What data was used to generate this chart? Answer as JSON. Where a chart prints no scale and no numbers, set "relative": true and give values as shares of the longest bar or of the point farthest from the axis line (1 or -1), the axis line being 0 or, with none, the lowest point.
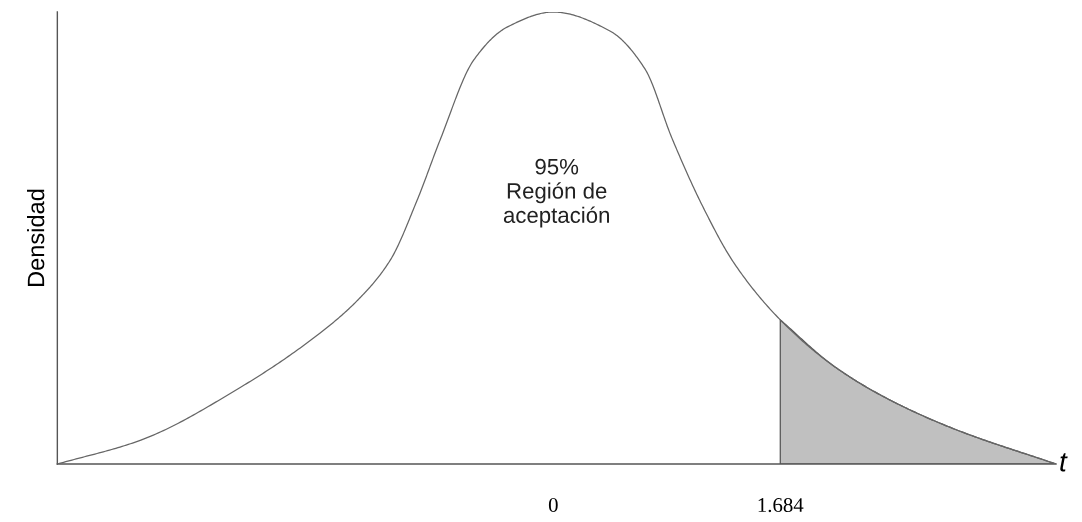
{
  "chart_data": {
    "type": "line",
    "relative": true,
    "xlabel": "t",
    "ylabel": "Densidad",
    "annotations": [
      "95%\nRegión de\naceptación"
    ],
    "xlim": [
      -3.68,
      3.73
    ],
    "xticks": [
      0,
      1.684
    ],
    "grid": false,
    "marker": "none",
    "line_style": "solid",
    "series": [
      {
        "color": "#666666",
        "x": [
          -3.68,
          -3.06,
          -2.32,
          -1.73,
          -1.45,
          -1.21,
          -1.01,
          -0.84,
          -0.59,
          -0.34,
          0,
          0.42,
          0.68,
          0.88,
          1.11,
          1.34,
          1.684,
          2.08,
          2.47,
          2.98,
          3.73
        ],
        "values": [
          0,
          0.053,
          0.17,
          0.29,
          0.363,
          0.451,
          0.584,
          0.717,
          0.894,
          0.967,
          1,
          0.958,
          0.874,
          0.721,
          0.569,
          0.445,
          0.319,
          0.217,
          0.146,
          0.077,
          0
        ]
      },
      {
        "type": "area",
        "color": "#c0c0c0",
        "x": [
          1.684,
          2.08,
          2.47,
          2.98,
          3.73
        ],
        "values": [
          0.319,
          0.217,
          0.146,
          0.077,
          0
        ]
      }
    ]
  }
}
